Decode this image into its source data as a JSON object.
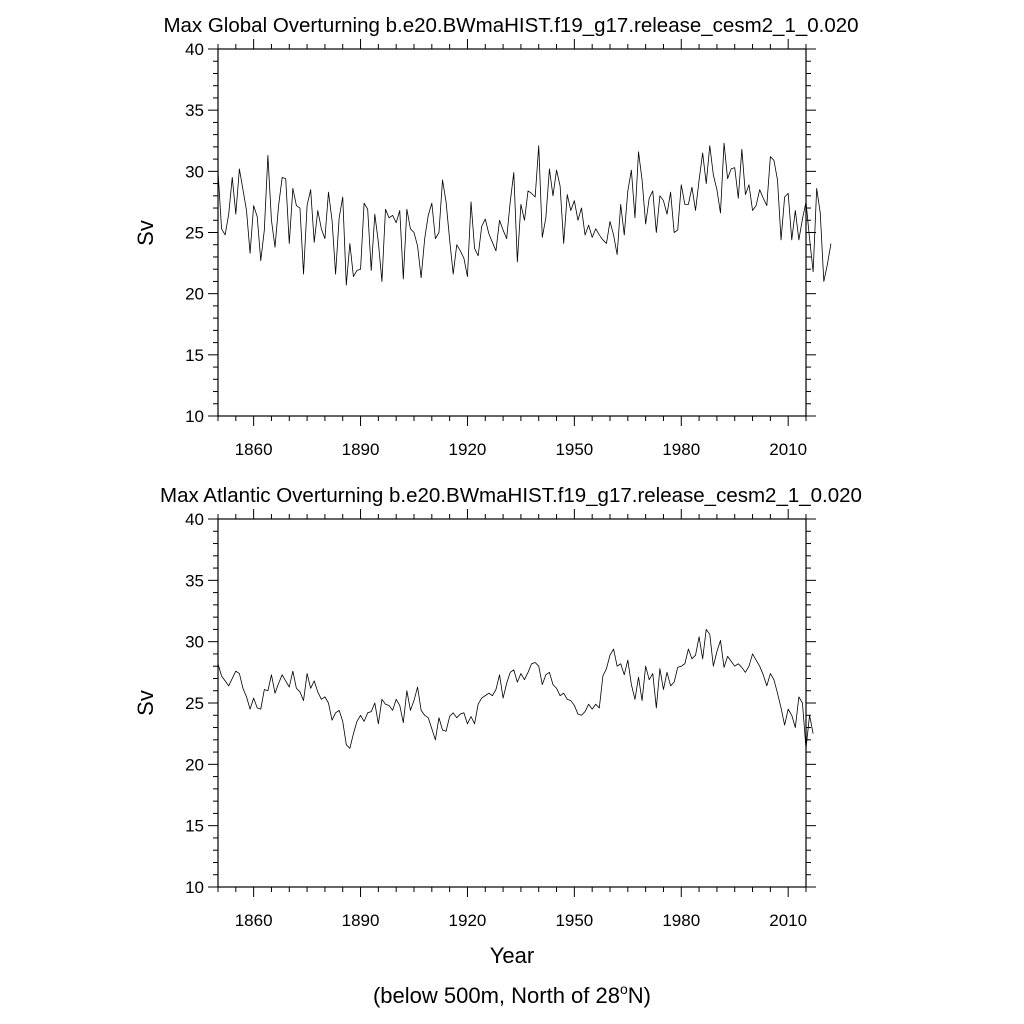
{
  "footnote": {
    "prefix": "(below 500m, North of 28",
    "superscript": "o",
    "suffix": "N)"
  },
  "chart_data": [
    {
      "type": "line",
      "title": "Max Global Overturning b.e20.BWmaHIST.f19_g17.release_cesm2_1_0.020",
      "xlabel": "",
      "ylabel": "Sv",
      "xlim": [
        1850,
        2015
      ],
      "ylim": [
        10,
        40
      ],
      "xticks": [
        1860,
        1890,
        1920,
        1950,
        1980,
        2010
      ],
      "yticks": [
        10,
        15,
        20,
        25,
        30,
        35,
        40
      ],
      "x_start": 1850,
      "values": [
        30.0,
        25.3,
        24.8,
        26.5,
        29.5,
        26.5,
        30.2,
        28.5,
        26.8,
        23.3,
        27.2,
        26.3,
        22.7,
        25.2,
        31.3,
        26.0,
        23.8,
        27.2,
        29.5,
        29.4,
        24.1,
        28.6,
        27.2,
        27.0,
        21.6,
        27.2,
        28.5,
        24.2,
        26.8,
        25.3,
        24.5,
        28.3,
        26.0,
        21.6,
        26.2,
        27.9,
        20.7,
        24.1,
        21.4,
        21.9,
        22.0,
        27.4,
        26.9,
        21.9,
        26.5,
        24.2,
        21.0,
        26.9,
        26.2,
        26.4,
        25.8,
        26.8,
        21.2,
        26.9,
        25.3,
        25.0,
        23.9,
        21.3,
        24.5,
        26.4,
        27.4,
        24.5,
        25.0,
        29.3,
        27.5,
        24.4,
        21.6,
        24.0,
        23.5,
        22.9,
        21.4,
        27.5,
        23.7,
        23.1,
        25.5,
        26.1,
        24.9,
        24.2,
        23.5,
        26.0,
        25.2,
        24.5,
        27.5,
        29.9,
        22.6,
        27.3,
        26.0,
        28.4,
        28.2,
        27.9,
        32.1,
        24.6,
        26.2,
        30.2,
        28.0,
        30.1,
        28.8,
        24.1,
        28.1,
        26.8,
        27.6,
        26.0,
        27.0,
        24.8,
        25.6,
        24.6,
        25.3,
        24.8,
        24.4,
        24.1,
        25.9,
        24.8,
        23.2,
        27.3,
        24.8,
        28.4,
        30.1,
        26.2,
        31.6,
        29.3,
        25.7,
        27.8,
        28.4,
        25.0,
        28.0,
        27.6,
        26.5,
        28.3,
        25.0,
        25.2,
        28.9,
        27.3,
        27.3,
        28.7,
        26.8,
        29.3,
        31.5,
        29.0,
        32.1,
        29.7,
        28.5,
        26.6,
        32.3,
        29.4,
        30.2,
        30.3,
        27.8,
        31.8,
        28.1,
        28.9,
        26.8,
        27.2,
        28.5,
        27.8,
        27.2,
        31.2,
        30.9,
        29.3,
        24.4,
        27.9,
        28.2,
        24.4,
        26.8,
        24.4,
        26.1,
        27.5,
        24.5,
        21.8,
        28.6,
        26.6,
        21.0,
        22.4,
        24.1
      ]
    },
    {
      "type": "line",
      "title": "Max Atlantic Overturning b.e20.BWmaHIST.f19_g17.release_cesm2_1_0.020",
      "xlabel": "Year",
      "ylabel": "Sv",
      "xlim": [
        1850,
        2015
      ],
      "ylim": [
        10,
        40
      ],
      "xticks": [
        1860,
        1890,
        1920,
        1950,
        1980,
        2010
      ],
      "yticks": [
        10,
        15,
        20,
        25,
        30,
        35,
        40
      ],
      "x_start": 1850,
      "values": [
        28.2,
        27.2,
        26.8,
        26.4,
        27.0,
        27.6,
        27.4,
        26.2,
        25.5,
        24.5,
        25.4,
        24.6,
        24.5,
        26.1,
        26.0,
        27.3,
        25.8,
        26.6,
        27.3,
        26.8,
        26.3,
        27.6,
        26.2,
        25.9,
        25.2,
        27.4,
        26.2,
        26.8,
        25.9,
        25.3,
        25.5,
        25.0,
        23.6,
        24.2,
        24.4,
        23.5,
        21.6,
        21.3,
        22.5,
        23.5,
        24.0,
        23.5,
        24.2,
        24.3,
        25.0,
        23.3,
        25.3,
        24.9,
        24.8,
        24.4,
        25.3,
        24.8,
        23.4,
        26.0,
        24.4,
        25.2,
        26.3,
        24.4,
        24.0,
        23.8,
        22.9,
        22.0,
        23.8,
        22.8,
        22.7,
        23.9,
        24.2,
        23.8,
        24.1,
        24.2,
        23.3,
        23.9,
        23.3,
        24.9,
        25.4,
        25.6,
        25.8,
        25.6,
        26.1,
        27.3,
        25.4,
        26.6,
        27.5,
        27.7,
        26.7,
        27.4,
        26.9,
        27.5,
        28.2,
        28.3,
        28.0,
        26.5,
        27.3,
        27.5,
        26.5,
        26.2,
        25.6,
        25.8,
        25.3,
        25.2,
        24.8,
        24.1,
        24.0,
        24.3,
        24.9,
        24.5,
        24.9,
        24.6,
        27.2,
        27.8,
        28.9,
        29.4,
        28.0,
        28.2,
        27.3,
        28.5,
        26.5,
        25.3,
        27.1,
        25.2,
        28.0,
        26.9,
        27.4,
        24.6,
        27.8,
        26.1,
        27.5,
        26.4,
        26.7,
        27.9,
        28.0,
        28.2,
        29.4,
        28.6,
        28.9,
        30.4,
        28.6,
        31.0,
        30.6,
        28.0,
        29.2,
        30.1,
        27.9,
        28.8,
        28.4,
        28.0,
        28.2,
        27.9,
        27.5,
        28.0,
        29.0,
        28.5,
        28.0,
        27.3,
        26.4,
        27.4,
        26.9,
        25.8,
        24.6,
        23.2,
        24.5,
        24.0,
        23.0,
        25.5,
        25.0,
        21.3,
        24.0,
        22.5
      ]
    }
  ]
}
